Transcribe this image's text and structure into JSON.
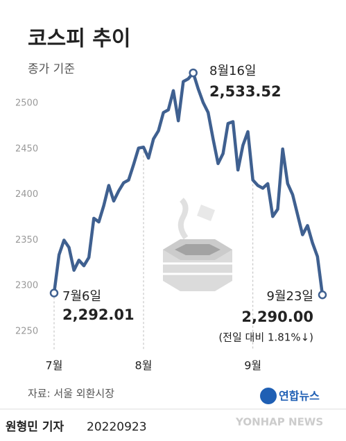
{
  "chart_data": {
    "type": "line",
    "title": "코스피 추이",
    "subtitle": "종가 기준",
    "categories": [
      "7월",
      null,
      null,
      null,
      null,
      null,
      null,
      null,
      null,
      null,
      null,
      null,
      null,
      null,
      null,
      null,
      null,
      null,
      "8월",
      null,
      null,
      null,
      null,
      null,
      null,
      null,
      null,
      null,
      null,
      null,
      null,
      null,
      null,
      null,
      null,
      null,
      null,
      null,
      null,
      null,
      "9월",
      null,
      null,
      null,
      null,
      null,
      null,
      null,
      null,
      null,
      null,
      null,
      null,
      null,
      null
    ],
    "series": [
      {
        "name": "코스피",
        "color": "#3f6090",
        "values": [
          2292.01,
          2334,
          2350,
          2342,
          2317,
          2328,
          2322,
          2331,
          2374,
          2370,
          2388,
          2410,
          2393,
          2404,
          2413,
          2416,
          2433,
          2451,
          2452,
          2440,
          2461,
          2470,
          2490,
          2493,
          2514,
          2481,
          2524,
          2527,
          2533.52,
          2516,
          2501,
          2490,
          2461,
          2434,
          2445,
          2478,
          2480,
          2427,
          2454,
          2469,
          2416,
          2410,
          2407,
          2412,
          2376,
          2384,
          2450,
          2412,
          2400,
          2378,
          2356,
          2366,
          2347,
          2332,
          2290.0
        ]
      }
    ],
    "ylim": [
      2240,
      2545
    ],
    "yticks": [
      2250,
      2300,
      2350,
      2400,
      2450,
      2500
    ],
    "grid": false,
    "annotations": [
      {
        "date": "7월6일",
        "value": "2,292.01"
      },
      {
        "date": "8월16일",
        "value": "2,533.52"
      },
      {
        "date": "9월23일",
        "value": "2,290.00",
        "note": "(전일 대비 1.81%↓)"
      }
    ],
    "source": "자료: 서울 외환시장",
    "brand": "연합뉴스",
    "watermark": "YONHAP NEWS",
    "reporter": "원형민 기자",
    "date": "20220923"
  }
}
